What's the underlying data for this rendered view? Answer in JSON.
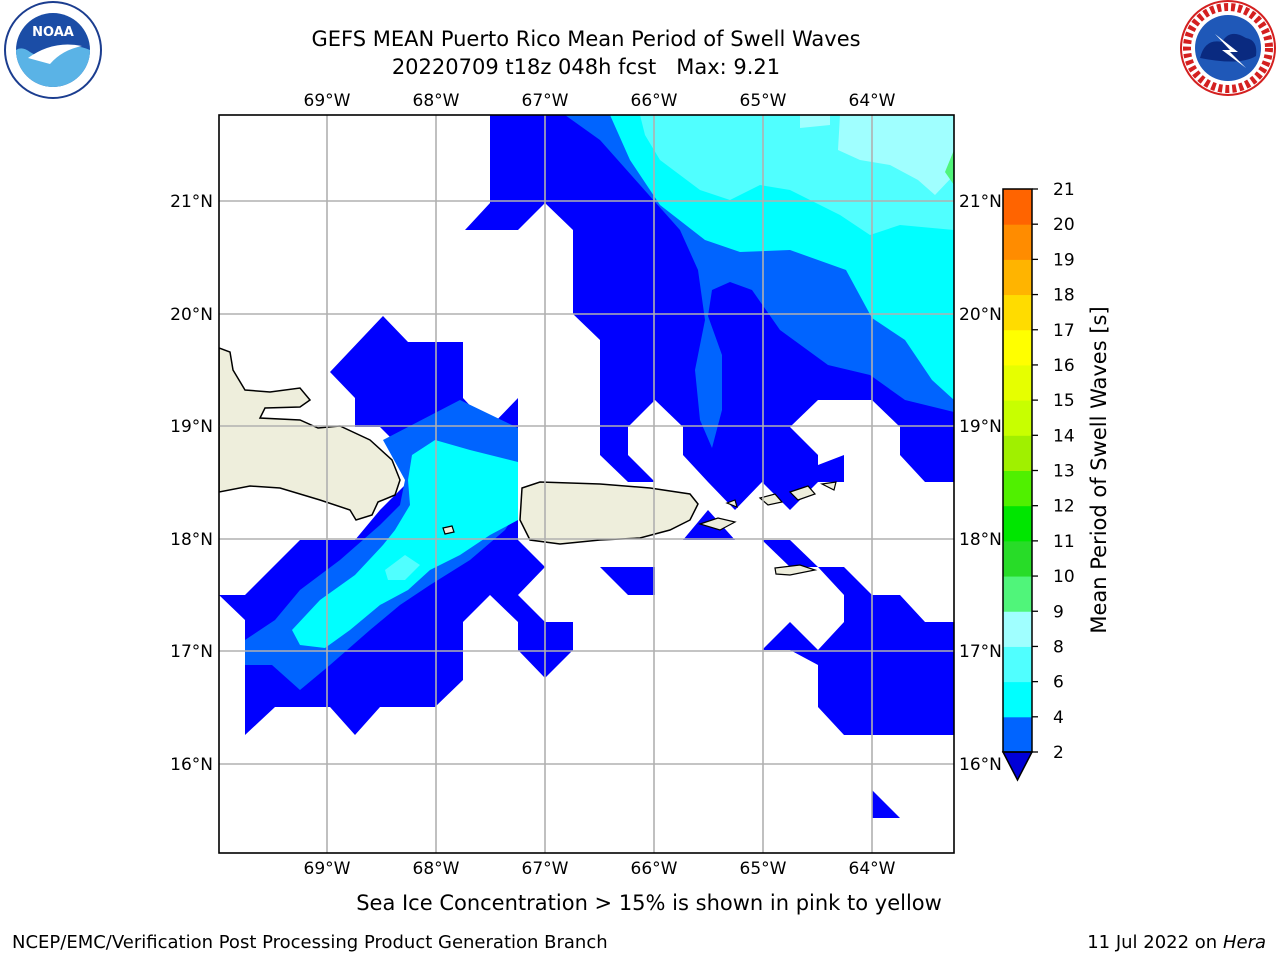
{
  "title": {
    "line1": "GEFS MEAN Puerto Rico Mean Period of Swell Waves",
    "line2": "20220709 t18z 048h fcst   Max: 9.21"
  },
  "subcaption": "Sea Ice Concentration > 15% is shown in pink to yellow",
  "footer": {
    "left": "NCEP/EMC/Verification Post Processing Product Generation Branch",
    "right_date": "11 Jul 2022 on ",
    "right_host": "Hera"
  },
  "logos": {
    "left": {
      "icon": "noaa-logo",
      "text": "NOAA",
      "ring_text": "NATIONAL OCEANIC AND ATMOSPHERIC ADMINISTRATION · U.S. DEPARTMENT OF COMMERCE"
    },
    "right": {
      "icon": "nws-logo",
      "ring_text": "NATIONAL WEATHER SERVICE"
    }
  },
  "map": {
    "lon_labels": [
      "69°W",
      "68°W",
      "67°W",
      "66°W",
      "65°W",
      "64°W"
    ],
    "lat_labels": [
      "21°N",
      "20°N",
      "19°N",
      "18°N",
      "17°N",
      "16°N"
    ],
    "land_color": "#eeeedc",
    "grid_color": "#b0b0b0"
  },
  "colorbar": {
    "label": "Mean Period of Swell Waves [s]",
    "ticks": [
      "2",
      "4",
      "6",
      "8",
      "9",
      "10",
      "11",
      "12",
      "13",
      "14",
      "15",
      "16",
      "17",
      "18",
      "19",
      "20",
      "21"
    ],
    "colors": [
      "#0000ff",
      "#0064ff",
      "#00e6ff",
      "#3cf5ff",
      "#96ffff",
      "#50f57a",
      "#28dc28",
      "#00e600",
      "#50f000",
      "#a0f000",
      "#c8ff00",
      "#e6ff00",
      "#ffff00",
      "#ffdc00",
      "#ffb400",
      "#ff8c00",
      "#ff6400",
      "#ff3c00",
      "#ff0000"
    ],
    "underflow_color": "#0000d7"
  },
  "legend_colors": {
    "lt2": "#0000ff",
    "c2_4": "#0064ff",
    "c4_6": "#00ffff",
    "c6_8": "#50ffff",
    "c8_9": "#a0ffff"
  }
}
